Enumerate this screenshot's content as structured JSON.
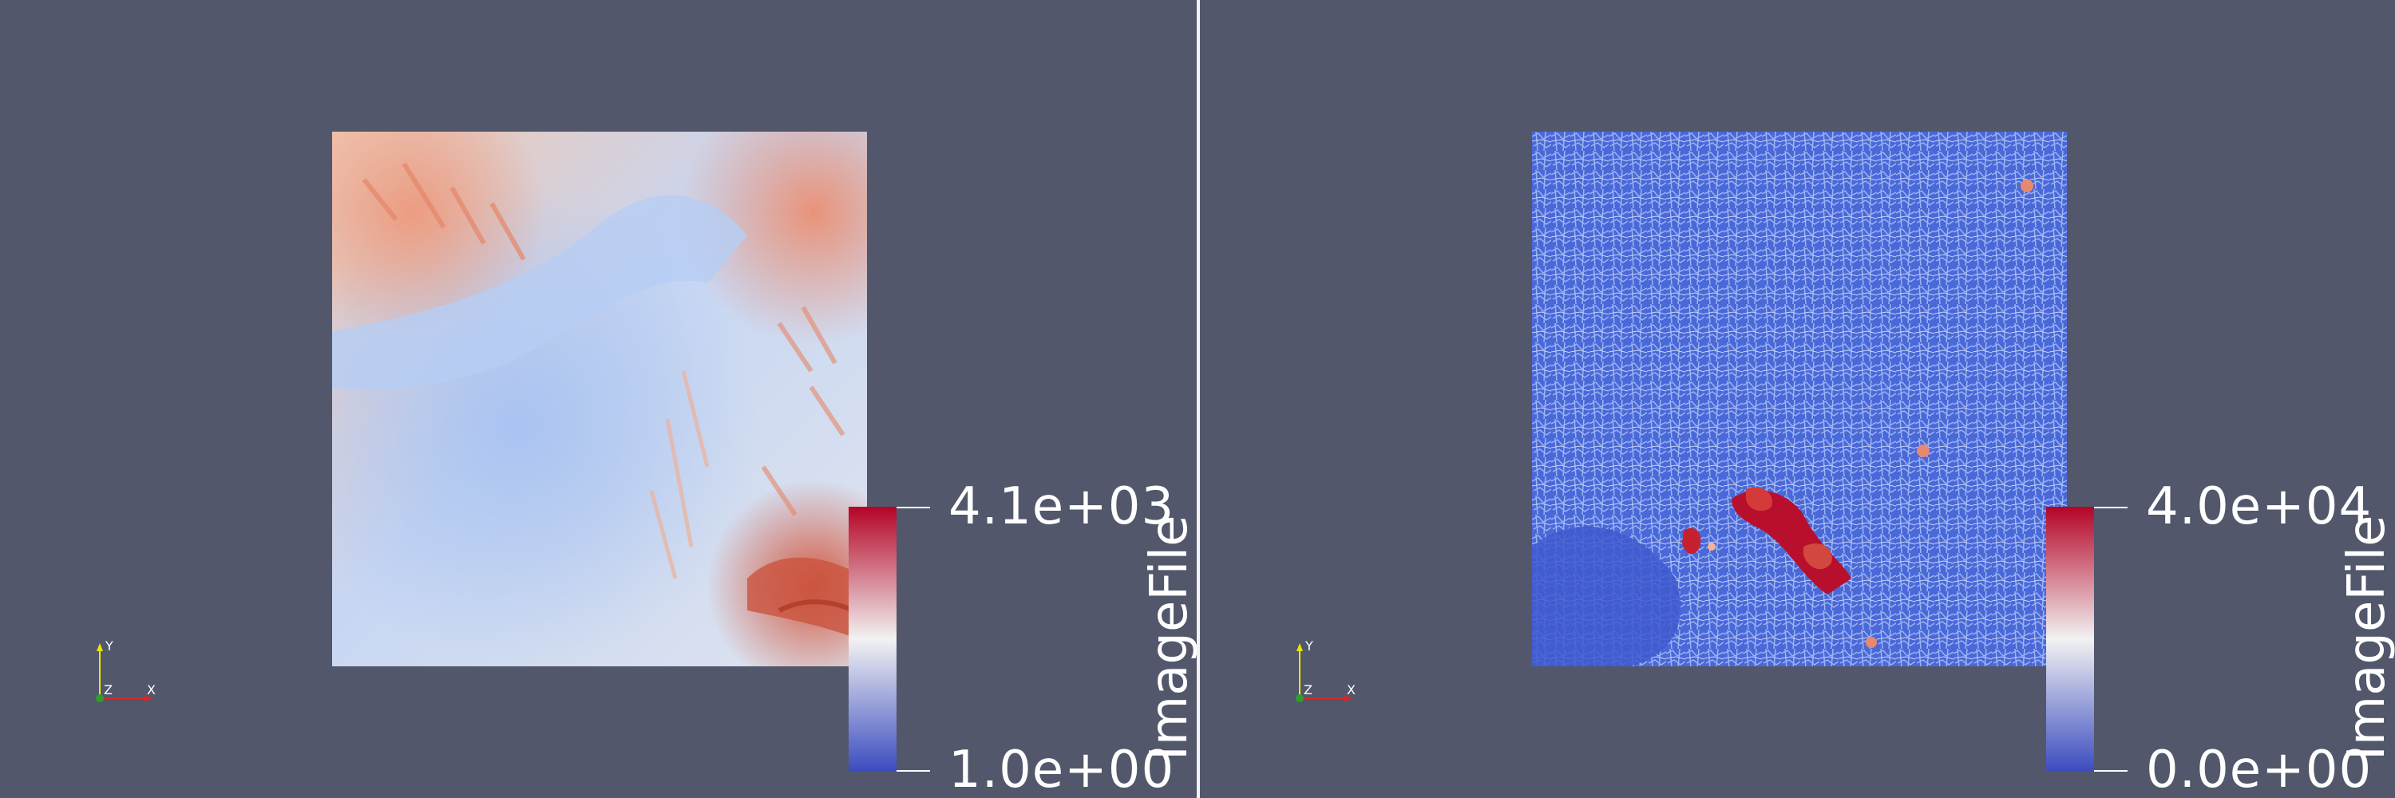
{
  "views": [
    {
      "id": "left",
      "colorbar": {
        "title": "ImageFile",
        "max_label": "4.1e+03",
        "min_label": "1.0e+00",
        "colors": [
          "#3b4cc0",
          "#f2f2f2",
          "#b40426"
        ]
      },
      "axes": {
        "y": "Y",
        "z": "Z",
        "x": "X"
      }
    },
    {
      "id": "right",
      "colorbar": {
        "title": "ImageFile",
        "max_label": "4.0e+04",
        "min_label": "0.0e+00",
        "colors": [
          "#3b4cc0",
          "#f2f2f2",
          "#b40426"
        ]
      },
      "axes": {
        "y": "Y",
        "z": "Z",
        "x": "X"
      }
    }
  ],
  "colors": {
    "background": "#52576b",
    "divider": "#f2f2f2",
    "axis_x": "#d62728",
    "axis_y": "#e8e800",
    "axis_z": "#2ca02c"
  }
}
